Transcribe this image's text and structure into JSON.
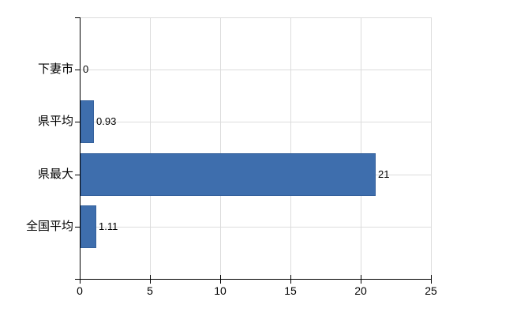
{
  "chart_data": {
    "type": "bar",
    "orientation": "horizontal",
    "title": "",
    "xlabel": "",
    "ylabel": "",
    "categories": [
      "下妻市",
      "県平均",
      "県最大",
      "全国平均"
    ],
    "values": [
      0,
      0.93,
      21,
      1.11
    ],
    "value_labels": [
      "0",
      "0.93",
      "21",
      "1.11"
    ],
    "xlim": [
      0,
      25
    ],
    "xticks": [
      0,
      5,
      10,
      15,
      20,
      25
    ],
    "xtick_labels": [
      "0",
      "5",
      "10",
      "15",
      "20",
      "25"
    ],
    "grid": true,
    "legend": false,
    "colors": {
      "bar": "#3e6ead",
      "bar_border": "#35619c",
      "grid": "#dcdcdc",
      "axis": "#000000",
      "text": "#000000",
      "background": "#ffffff"
    }
  }
}
